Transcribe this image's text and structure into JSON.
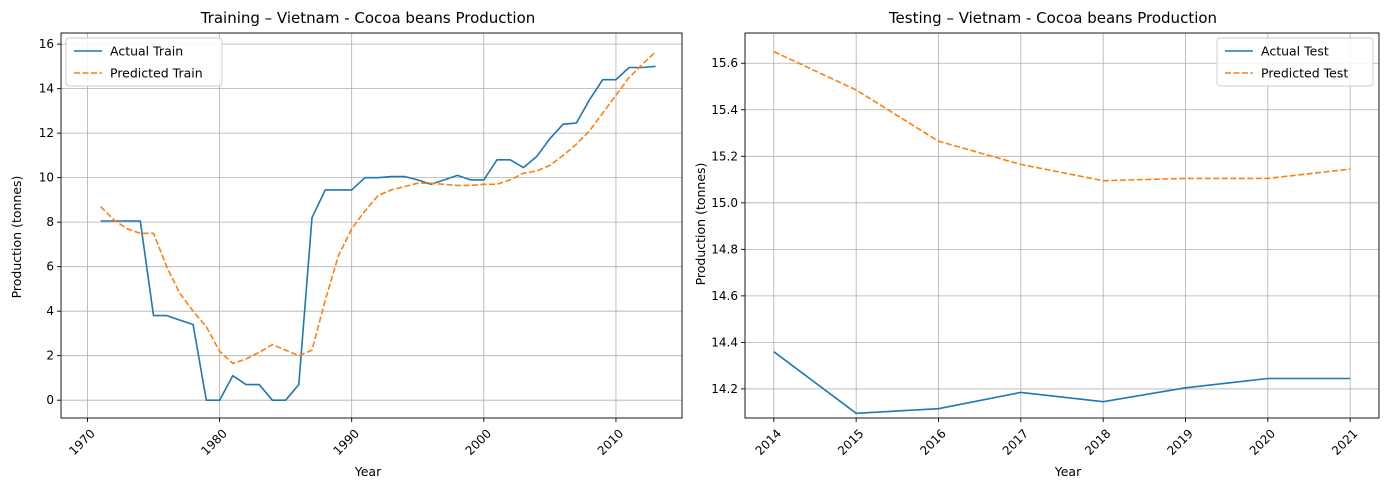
{
  "chart_data": [
    {
      "type": "line",
      "title": "Training – Vietnam - Cocoa beans Production",
      "xlabel": "Year",
      "ylabel": "Production (tonnes)",
      "xlim": [
        1968,
        2015
      ],
      "ylim": [
        -0.8,
        16.5
      ],
      "xticks": [
        1970,
        1980,
        1990,
        2000,
        2010
      ],
      "yticks": [
        0,
        2,
        4,
        6,
        8,
        10,
        12,
        14,
        16
      ],
      "grid": true,
      "legend_position": "top-left",
      "series": [
        {
          "name": "Actual Train",
          "color": "#1f77b4",
          "style": "solid",
          "x": [
            1971,
            1972,
            1973,
            1974,
            1975,
            1976,
            1977,
            1978,
            1979,
            1980,
            1981,
            1982,
            1983,
            1984,
            1985,
            1986,
            1987,
            1988,
            1989,
            1990,
            1991,
            1992,
            1993,
            1994,
            1995,
            1996,
            1997,
            1998,
            1999,
            2000,
            2001,
            2002,
            2003,
            2004,
            2005,
            2006,
            2007,
            2008,
            2009,
            2010,
            2011,
            2012,
            2013
          ],
          "y": [
            8.05,
            8.05,
            8.05,
            8.05,
            3.8,
            3.8,
            3.6,
            3.4,
            0.0,
            0.0,
            1.1,
            0.7,
            0.7,
            0.0,
            0.0,
            0.7,
            8.2,
            9.45,
            9.45,
            9.45,
            10.0,
            10.0,
            10.05,
            10.05,
            9.9,
            9.7,
            9.9,
            10.1,
            9.9,
            9.9,
            10.8,
            10.8,
            10.45,
            10.95,
            11.75,
            12.4,
            12.45,
            13.5,
            14.4,
            14.4,
            14.95,
            14.95,
            15.0
          ]
        },
        {
          "name": "Predicted Train",
          "color": "#ff7f0e",
          "style": "dashed",
          "x": [
            1971,
            1972,
            1973,
            1974,
            1975,
            1976,
            1977,
            1978,
            1979,
            1980,
            1981,
            1982,
            1983,
            1984,
            1985,
            1986,
            1987,
            1988,
            1989,
            1990,
            1991,
            1992,
            1993,
            1994,
            1995,
            1996,
            1997,
            1998,
            1999,
            2000,
            2001,
            2002,
            2003,
            2004,
            2005,
            2006,
            2007,
            2008,
            2009,
            2010,
            2011,
            2012,
            2013
          ],
          "y": [
            8.7,
            8.1,
            7.7,
            7.5,
            7.5,
            6.0,
            4.8,
            4.0,
            3.3,
            2.2,
            1.65,
            1.85,
            2.15,
            2.5,
            2.25,
            2.0,
            2.25,
            4.5,
            6.5,
            7.7,
            8.5,
            9.2,
            9.45,
            9.6,
            9.75,
            9.75,
            9.7,
            9.65,
            9.65,
            9.7,
            9.7,
            9.9,
            10.2,
            10.3,
            10.55,
            11.0,
            11.5,
            12.1,
            12.9,
            13.7,
            14.5,
            15.1,
            15.65
          ]
        }
      ]
    },
    {
      "type": "line",
      "title": "Testing – Vietnam - Cocoa beans Production",
      "xlabel": "Year",
      "ylabel": "Production (tonnes)",
      "xlim": [
        2013.65,
        2021.35
      ],
      "ylim": [
        14.075,
        15.73
      ],
      "xticks": [
        2014,
        2015,
        2016,
        2017,
        2018,
        2019,
        2020,
        2021
      ],
      "yticks": [
        14.2,
        14.4,
        14.6,
        14.8,
        15.0,
        15.2,
        15.4,
        15.6
      ],
      "grid": true,
      "legend_position": "top-right",
      "series": [
        {
          "name": "Actual Test",
          "color": "#1f77b4",
          "style": "solid",
          "x": [
            2014,
            2015,
            2016,
            2017,
            2018,
            2019,
            2020,
            2021
          ],
          "y": [
            14.36,
            14.095,
            14.115,
            14.185,
            14.145,
            14.205,
            14.245,
            14.245
          ]
        },
        {
          "name": "Predicted Test",
          "color": "#ff7f0e",
          "style": "dashed",
          "x": [
            2014,
            2015,
            2016,
            2017,
            2018,
            2019,
            2020,
            2021
          ],
          "y": [
            15.65,
            15.485,
            15.265,
            15.165,
            15.095,
            15.105,
            15.105,
            15.145
          ]
        }
      ]
    }
  ]
}
